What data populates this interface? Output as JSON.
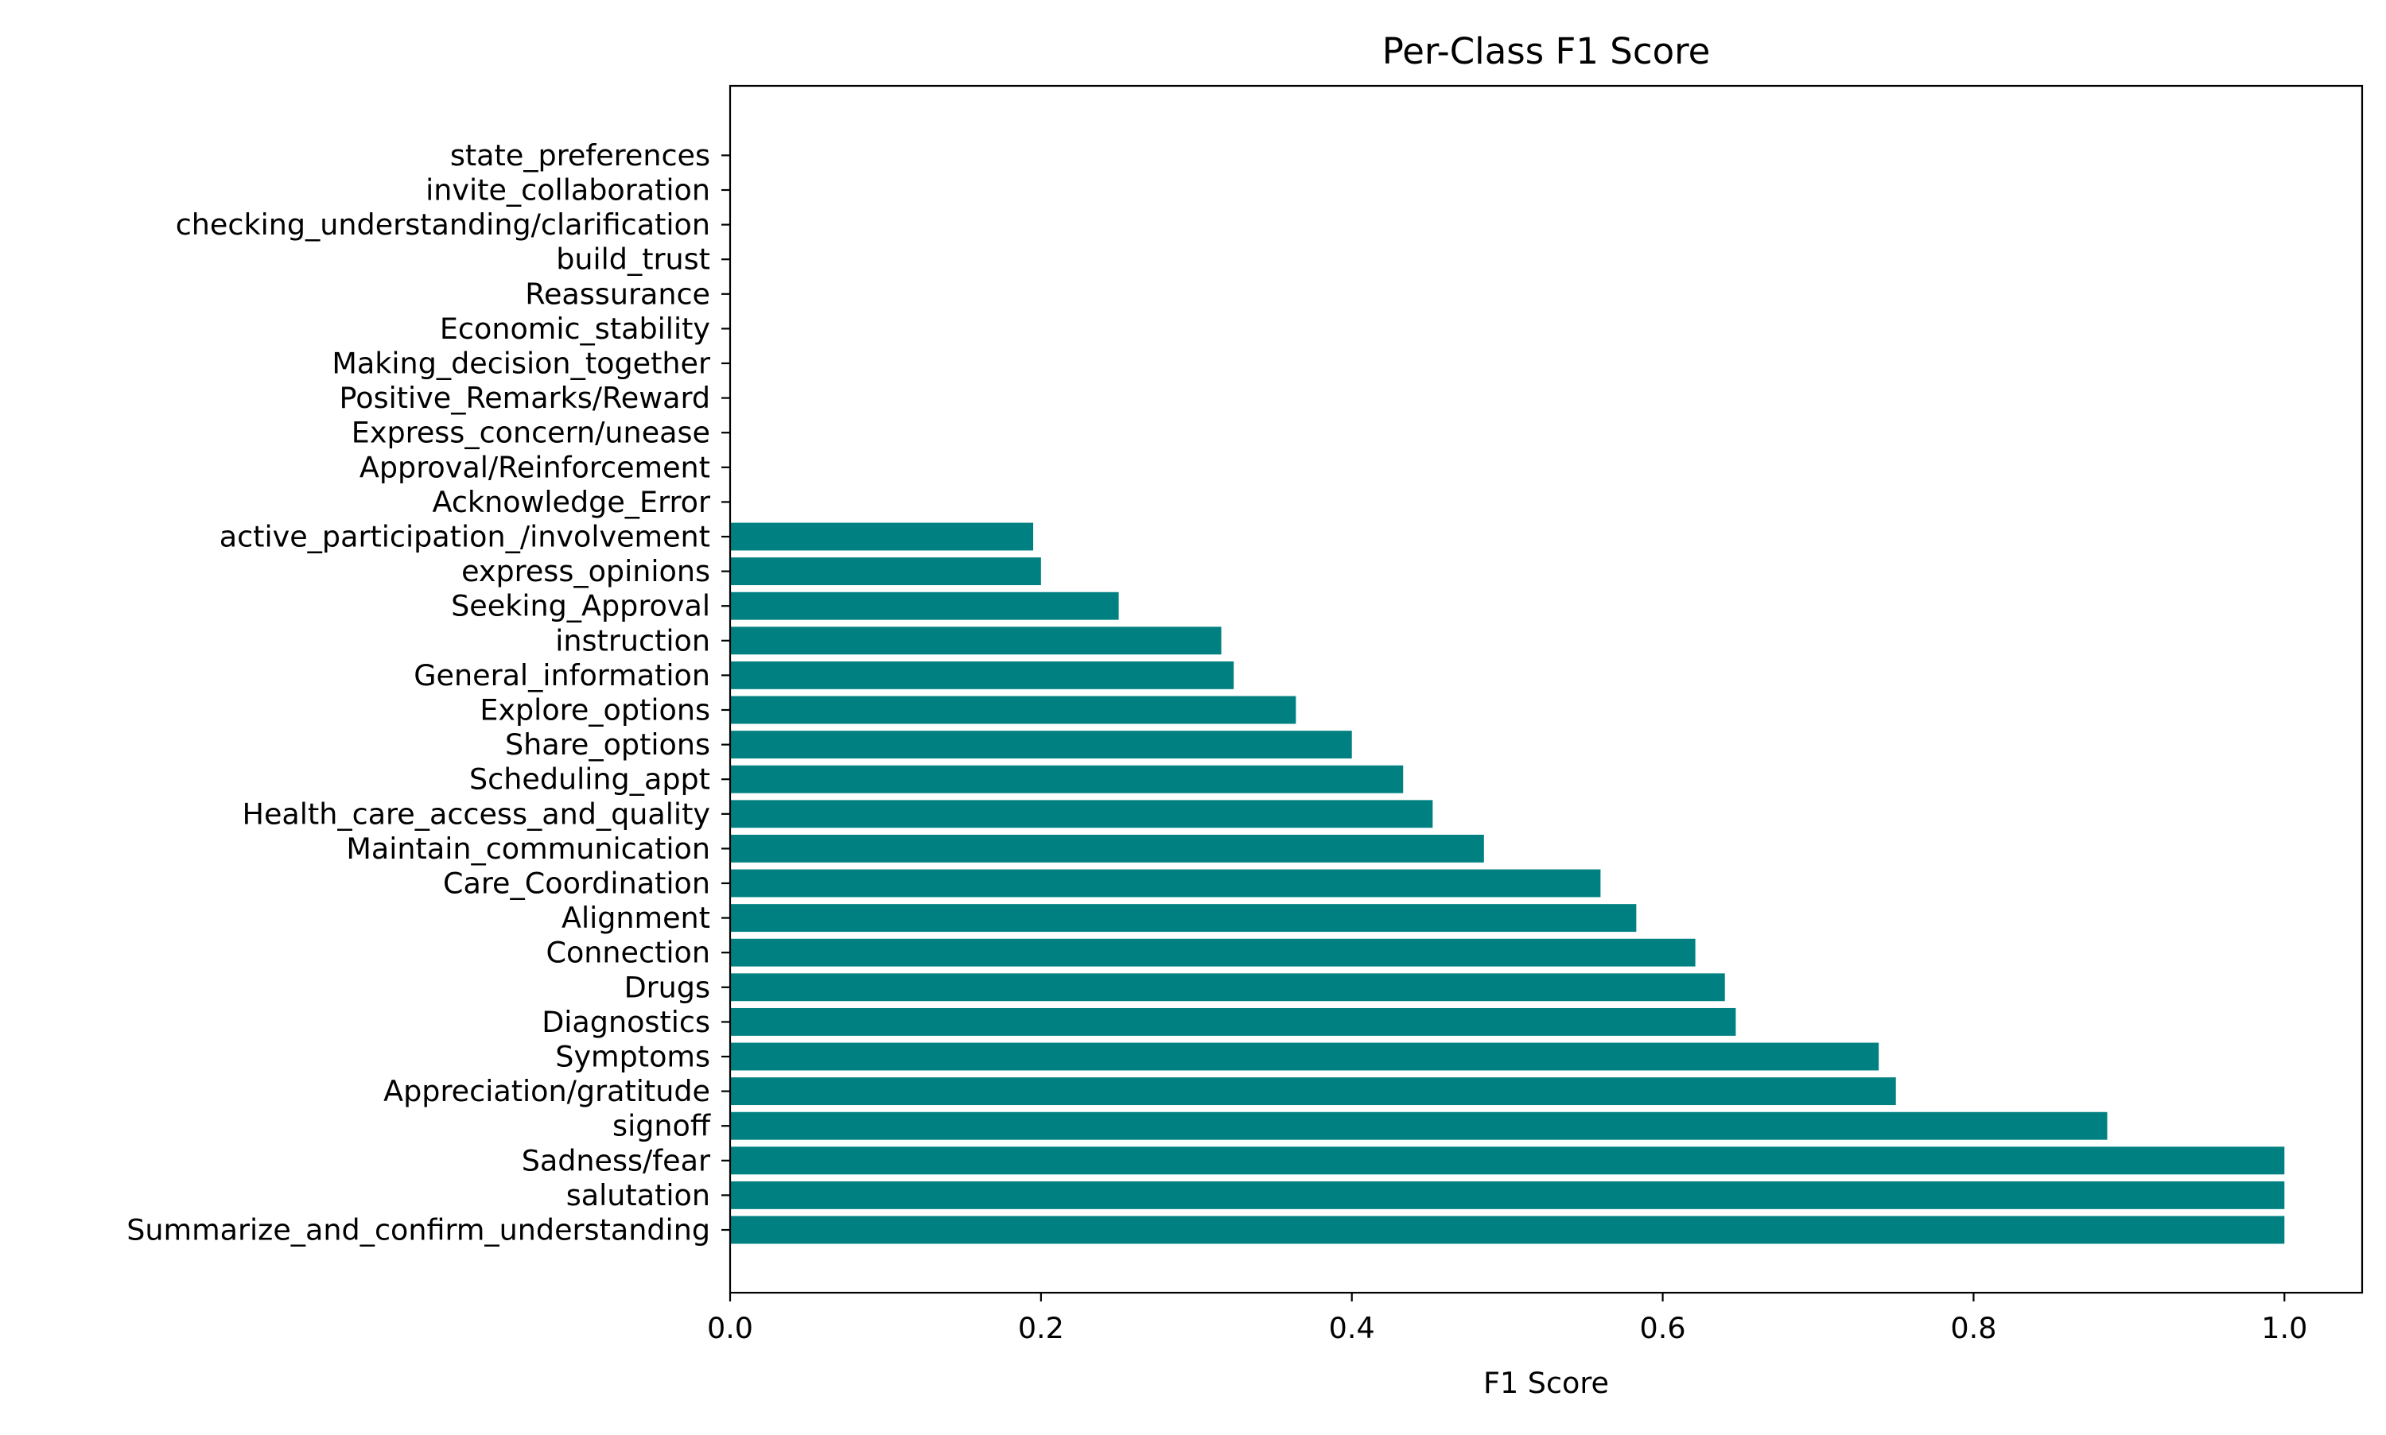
{
  "chart_data": {
    "type": "bar",
    "orientation": "horizontal",
    "title": "Per-Class F1 Score",
    "xlabel": "F1 Score",
    "ylabel": "",
    "xlim": [
      0.0,
      1.05
    ],
    "x_ticks": [
      0.0,
      0.2,
      0.4,
      0.6,
      0.8,
      1.0
    ],
    "x_tick_labels": [
      "0.0",
      "0.2",
      "0.4",
      "0.6",
      "0.8",
      "1.0"
    ],
    "grid": false,
    "legend": "none",
    "bar_color": "#008080",
    "categories": [
      "Summarize_and_confirm_understanding",
      "salutation",
      "Sadness/fear",
      "signoff",
      "Appreciation/gratitude",
      "Symptoms",
      "Diagnostics",
      "Drugs",
      "Connection",
      "Alignment",
      "Care_Coordination",
      "Maintain_communication",
      "Health_care_access_and_quality",
      "Scheduling_appt",
      "Share_options",
      "Explore_options",
      "General_information",
      "instruction",
      "Seeking_Approval",
      "express_opinions",
      "active_participation_/involvement",
      "Acknowledge_Error",
      "Approval/Reinforcement",
      "Express_concern/unease",
      "Positive_Remarks/Reward",
      "Making_decision_together",
      "Economic_stability",
      "Reassurance",
      "build_trust",
      "checking_understanding/clarification",
      "invite_collaboration",
      "state_preferences"
    ],
    "values": [
      1.0,
      1.0,
      1.0,
      0.886,
      0.75,
      0.739,
      0.647,
      0.64,
      0.621,
      0.583,
      0.56,
      0.485,
      0.452,
      0.433,
      0.4,
      0.364,
      0.324,
      0.316,
      0.25,
      0.2,
      0.195,
      0,
      0,
      0,
      0,
      0,
      0,
      0,
      0,
      0,
      0,
      0
    ]
  }
}
